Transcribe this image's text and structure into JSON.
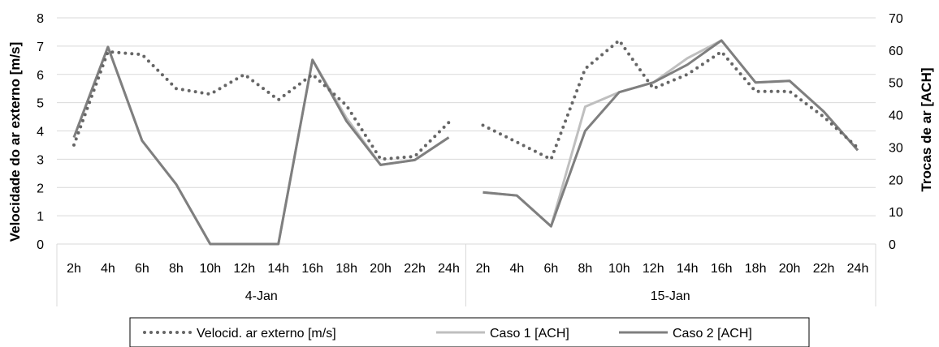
{
  "chart_data": {
    "type": "line",
    "title": "",
    "ylabel_left": "Velocidade do ar externo [m/s]",
    "ylabel_right": "Trocas de ar [ACH]",
    "ylim_left": [
      0,
      8
    ],
    "ylim_right": [
      0,
      70
    ],
    "yticks_left": [
      "0",
      "1",
      "2",
      "3",
      "4",
      "5",
      "6",
      "7",
      "8"
    ],
    "yticks_right": [
      "0",
      "10",
      "20",
      "30",
      "40",
      "50",
      "60",
      "70"
    ],
    "grid": true,
    "legend_position": "bottom",
    "groups": [
      {
        "label": "4-Jan",
        "categories": [
          "2h",
          "4h",
          "6h",
          "8h",
          "10h",
          "12h",
          "14h",
          "16h",
          "18h",
          "20h",
          "22h",
          "24h"
        ]
      },
      {
        "label": "15-Jan",
        "categories": [
          "2h",
          "4h",
          "6h",
          "8h",
          "10h",
          "12h",
          "14h",
          "16h",
          "18h",
          "20h",
          "22h",
          "24h"
        ]
      }
    ],
    "series": [
      {
        "name": "Velocid. ar externo [m/s]",
        "axis": "left",
        "style": "dotted",
        "color": "#666666",
        "values": [
          [
            3.5,
            6.8,
            6.7,
            5.5,
            5.3,
            6.0,
            5.1,
            6.0,
            4.9,
            3.0,
            3.1,
            4.3
          ],
          [
            4.2,
            3.6,
            3.0,
            6.2,
            7.2,
            5.5,
            6.0,
            6.8,
            5.4,
            5.4,
            4.5,
            3.4
          ]
        ]
      },
      {
        "name": "Caso 1 [ACH]",
        "axis": "right",
        "style": "solid",
        "color": "#bfbfbf",
        "values": [
          [
            33,
            61,
            32,
            18.5,
            0,
            0,
            0,
            57,
            39,
            24.5,
            26,
            33
          ],
          [
            16,
            15,
            5.5,
            42.5,
            47,
            50,
            57.5,
            63,
            50,
            50.5,
            41,
            29
          ]
        ]
      },
      {
        "name": "Caso 2 [ACH]",
        "axis": "right",
        "style": "solid",
        "color": "#7f7f7f",
        "values": [
          [
            33,
            61,
            32,
            18.5,
            0,
            0,
            0,
            57,
            38,
            24.5,
            26,
            33
          ],
          [
            16,
            15,
            5.5,
            35,
            47,
            50,
            55.5,
            63,
            50,
            50.5,
            41,
            29
          ]
        ]
      }
    ]
  }
}
